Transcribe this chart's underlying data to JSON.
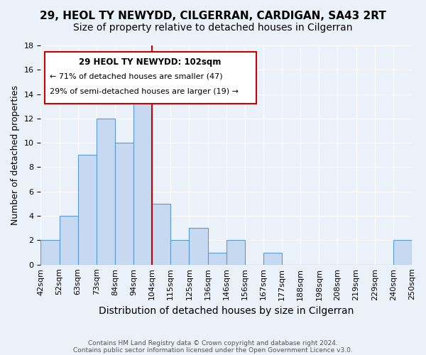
{
  "title_line1": "29, HEOL TY NEWYDD, CILGERRAN, CARDIGAN, SA43 2RT",
  "title_line2": "Size of property relative to detached houses in Cilgerran",
  "xlabel": "Distribution of detached houses by size in Cilgerran",
  "ylabel": "Number of detached properties",
  "bin_edges": [
    "42sqm",
    "52sqm",
    "63sqm",
    "73sqm",
    "84sqm",
    "94sqm",
    "104sqm",
    "115sqm",
    "125sqm",
    "136sqm",
    "146sqm",
    "156sqm",
    "167sqm",
    "177sqm",
    "188sqm",
    "198sqm",
    "208sqm",
    "219sqm",
    "229sqm",
    "240sqm",
    "250sqm"
  ],
  "bar_values": [
    2,
    4,
    9,
    12,
    10,
    14,
    5,
    2,
    3,
    1,
    2,
    0,
    1,
    0,
    0,
    0,
    0,
    0,
    0,
    2
  ],
  "bar_color": "#c6d9f0",
  "bar_edge_color": "#5b9bd5",
  "ylim": [
    0,
    18
  ],
  "yticks": [
    0,
    2,
    4,
    6,
    8,
    10,
    12,
    14,
    16,
    18
  ],
  "vline_index": 6,
  "vline_color": "#cc0000",
  "annotation_box_color": "#cc0000",
  "annotation_line1": "29 HEOL TY NEWYDD: 102sqm",
  "annotation_line2": "← 71% of detached houses are smaller (47)",
  "annotation_line3": "29% of semi-detached houses are larger (19) →",
  "footer_line1": "Contains HM Land Registry data © Crown copyright and database right 2024.",
  "footer_line2": "Contains public sector information licensed under the Open Government Licence v3.0.",
  "bg_color": "#eaf1f8",
  "plot_bg_color": "#eaf1f8",
  "grid_color": "#ffffff",
  "title_fontsize": 11,
  "subtitle_fontsize": 10,
  "tick_fontsize": 8,
  "ylabel_fontsize": 9,
  "xlabel_fontsize": 10
}
